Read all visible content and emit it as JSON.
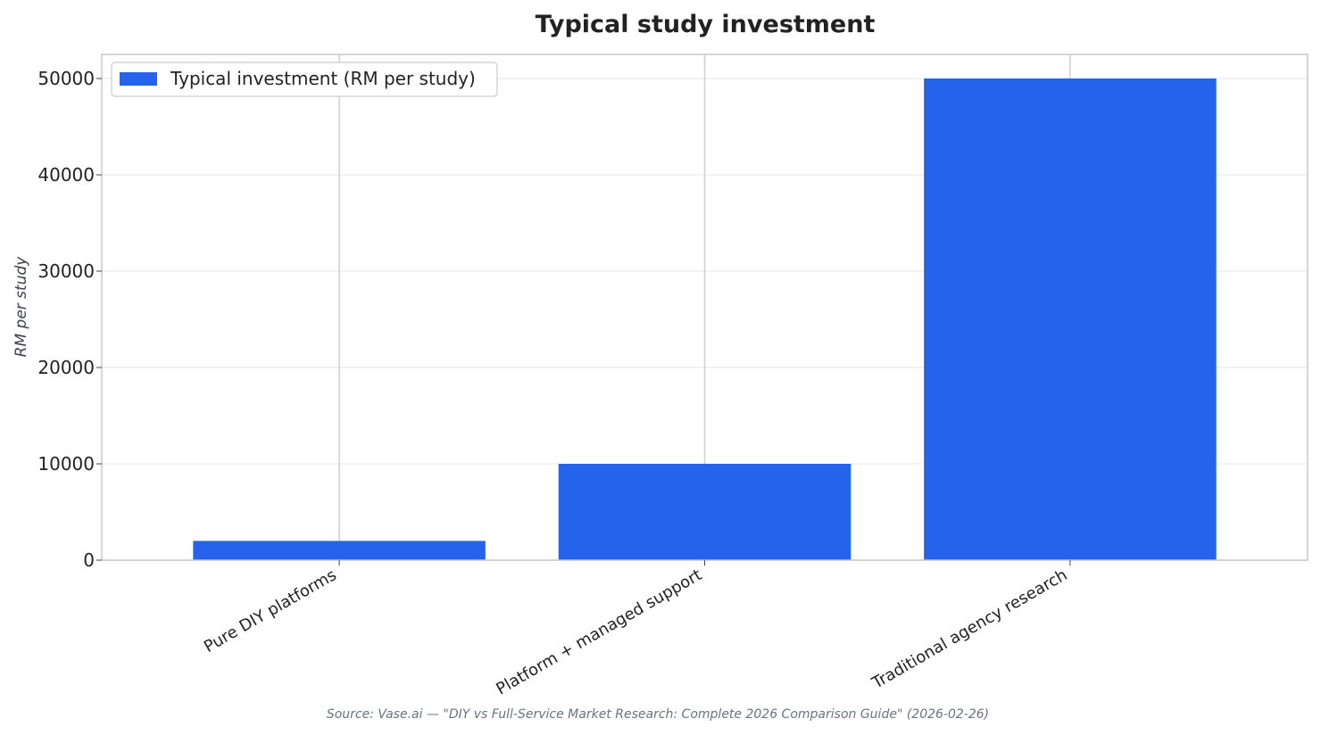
{
  "chart_data": {
    "type": "bar",
    "title": "Typical study investment",
    "xlabel": "",
    "ylabel": "RM per study",
    "categories": [
      "Pure DIY platforms",
      "Platform + managed support",
      "Traditional agency research"
    ],
    "series": [
      {
        "name": "Typical investment (RM per study)",
        "values": [
          2000,
          10000,
          50000
        ],
        "color": "#2563eb"
      }
    ],
    "ylim": [
      0,
      52500
    ],
    "yticks": [
      0,
      10000,
      20000,
      30000,
      40000,
      50000
    ],
    "grid": true,
    "legend_position": "top-left",
    "source": "Source: Vase.ai — \"DIY vs Full-Service Market Research: Complete 2026 Comparison Guide\" (2026-02-26)"
  }
}
